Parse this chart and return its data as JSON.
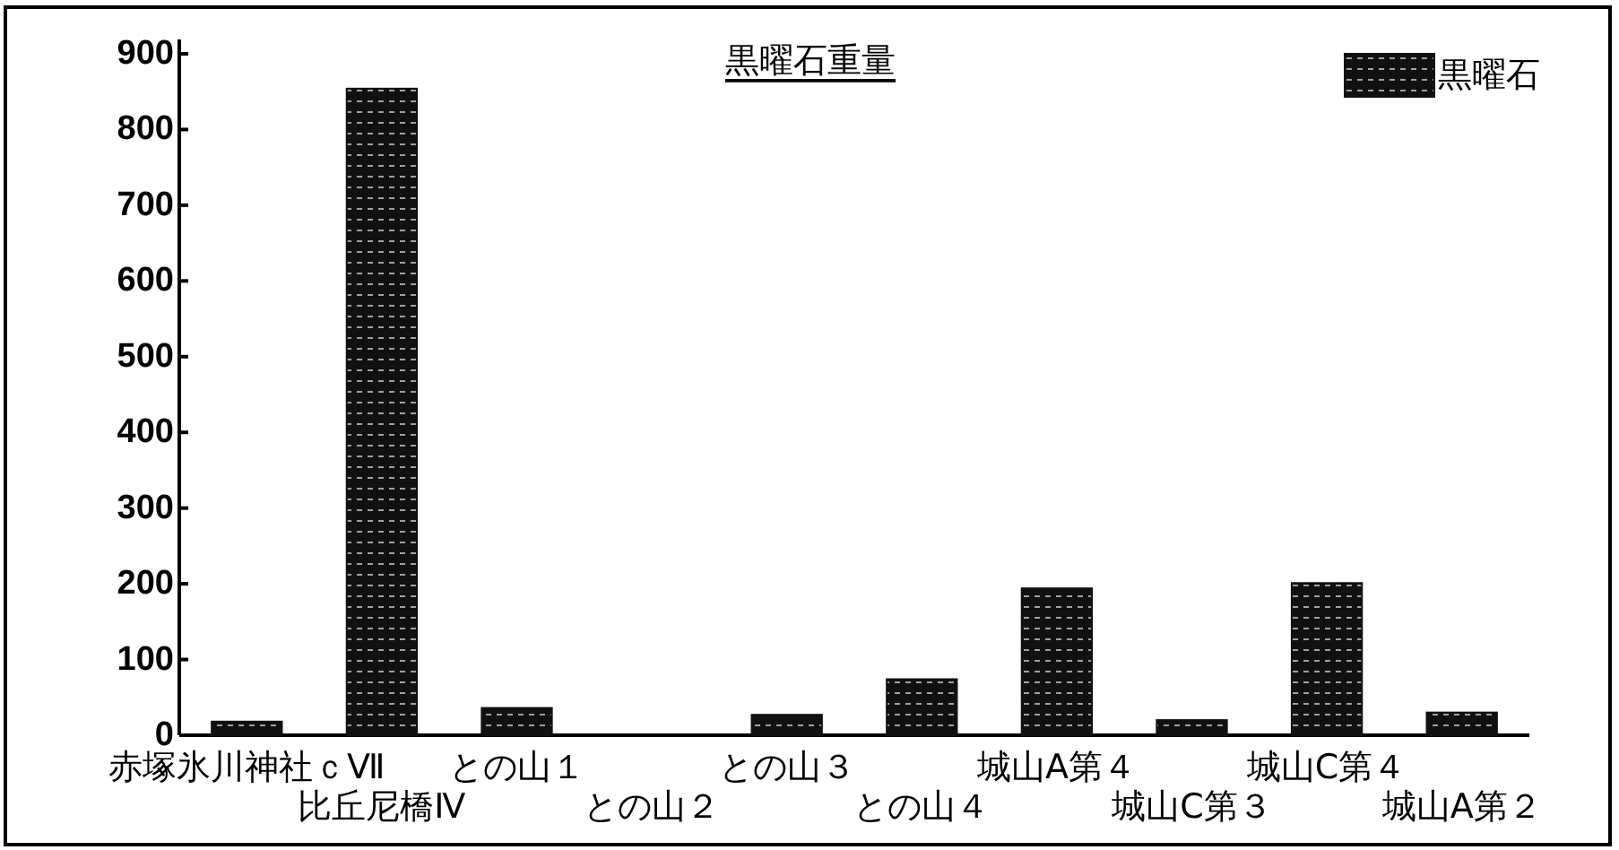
{
  "chart_data": {
    "type": "bar",
    "title": "黒曜石重量",
    "categories": [
      "赤塚氷川神社ｃⅦ",
      "比丘尼橋Ⅳ",
      "との山１",
      "との山２",
      "との山３",
      "との山４",
      "城山A第４",
      "城山C第３",
      "城山C第４",
      "城山A第２"
    ],
    "series": [
      {
        "name": "黒曜石",
        "color": "#111111",
        "values": [
          18,
          854,
          36,
          0,
          27,
          74,
          194,
          20,
          201,
          30
        ]
      }
    ],
    "ylim": [
      0,
      900
    ],
    "yticks": [
      0,
      100,
      200,
      300,
      400,
      500,
      600,
      700,
      800,
      900
    ],
    "legend": "top right"
  }
}
